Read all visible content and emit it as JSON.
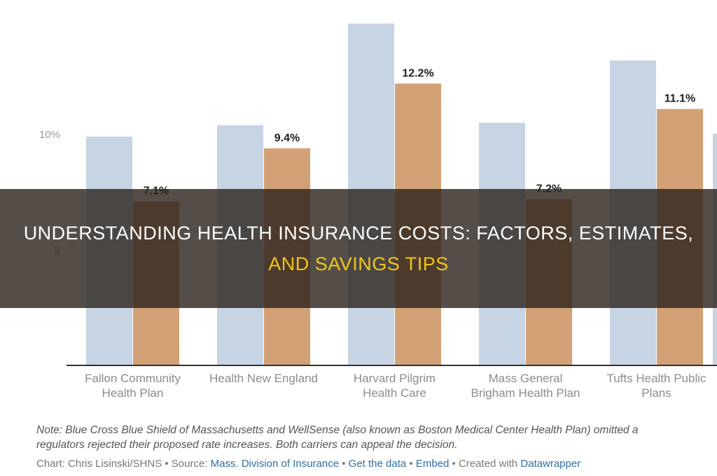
{
  "chart_data": {
    "type": "bar",
    "categories": [
      [
        "Fallon Community",
        "Health Plan"
      ],
      [
        "Health New England"
      ],
      [
        "Harvard Pilgrim",
        "Health Care"
      ],
      [
        "Mass General",
        "Brigham Health Plan"
      ],
      [
        "Tufts Health Public",
        "Plans"
      ]
    ],
    "series": [
      {
        "values": [
          9.9,
          10.4,
          14.8,
          10.5,
          13.2
        ],
        "color": "#c6d4e4"
      },
      {
        "values": [
          7.1,
          9.4,
          12.2,
          7.2,
          11.1
        ],
        "color": "#d2a175",
        "labels": [
          "7.1%",
          "9.4%",
          "12.2%",
          "7.2%",
          "11.1%"
        ]
      }
    ],
    "ylim": [
      0,
      16.5
    ],
    "yticks": [
      {
        "value": 10,
        "label": "10%"
      },
      {
        "value": 5,
        "label": "5"
      }
    ],
    "grid": false,
    "title": "",
    "xlabel": "",
    "ylabel": ""
  },
  "note": {
    "line1": "Note: Blue Cross Blue Shield of Massachusetts and WellSense (also known as Boston Medical Center Health Plan) omitted a",
    "line2": "regulators rejected their proposed rate increases. Both carriers can appeal the decision."
  },
  "credits": {
    "chart_prefix": "Chart: Chris Lisinski/SHNS • Source: ",
    "source_link": "Mass. Division of Insurance",
    "sep1": " • ",
    "get_data": "Get the data",
    "sep2": " • ",
    "embed": "Embed",
    "created_prefix": " • Created with ",
    "datawrapper": "Datawrapper"
  },
  "banner": {
    "line1": "Understanding Health Insurance Costs: Factors, Estimates,",
    "line2": "And Savings Tips"
  }
}
